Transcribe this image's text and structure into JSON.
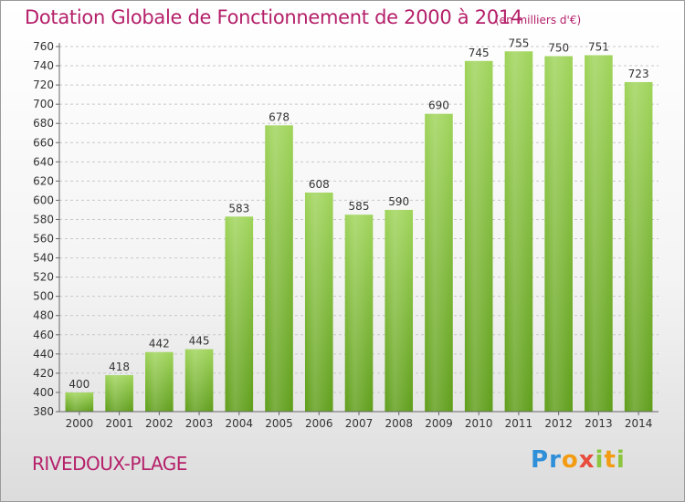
{
  "chart_data": {
    "type": "bar",
    "title": "Dotation Globale de Fonctionnement de 2000 à 2014",
    "subtitle": "(en milliers d'€)",
    "categories": [
      "2000",
      "2001",
      "2002",
      "2003",
      "2004",
      "2005",
      "2006",
      "2007",
      "2008",
      "2009",
      "2010",
      "2011",
      "2012",
      "2013",
      "2014"
    ],
    "values": [
      400,
      418,
      442,
      445,
      583,
      678,
      608,
      585,
      590,
      690,
      745,
      755,
      750,
      751,
      723
    ],
    "ylim": [
      380,
      760
    ],
    "yticks": [
      380,
      400,
      420,
      440,
      460,
      480,
      500,
      520,
      540,
      560,
      580,
      600,
      620,
      640,
      660,
      680,
      700,
      720,
      740,
      760
    ],
    "grid": true,
    "bar_color": "#8cc63f"
  },
  "location": "RIVEDOUX-PLAGE",
  "logo": {
    "letters": [
      "P",
      "r",
      "o",
      "x",
      "i",
      "t",
      "i"
    ],
    "colors": [
      "#2f8fd8",
      "#2f8fd8",
      "#f39c12",
      "#e74c3c",
      "#8cc63f",
      "#f39c12",
      "#8cc63f"
    ]
  }
}
